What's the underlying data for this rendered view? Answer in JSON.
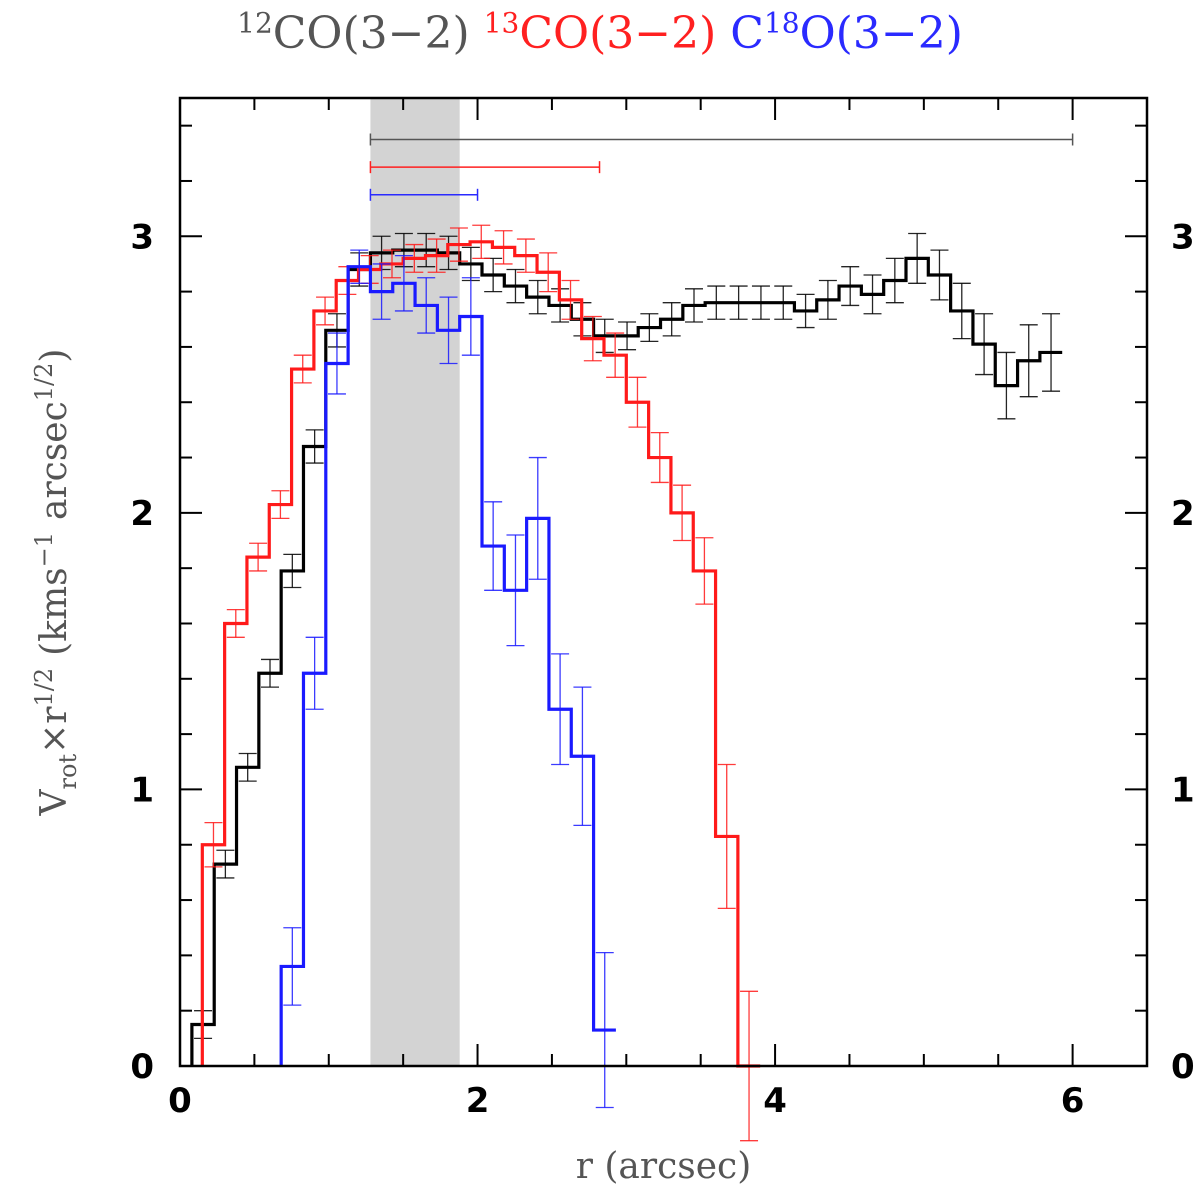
{
  "chart_data": {
    "type": "line",
    "title_parts": [
      {
        "iso": "12",
        "pre": "",
        "post": "CO(3−2)",
        "color": "#555555"
      },
      {
        "iso": "13",
        "pre": "",
        "post": "CO(3−2)",
        "color": "#ff2020"
      },
      {
        "iso": "18",
        "pre": "C",
        "post": "O(3−2)",
        "color": "#2a2aff"
      }
    ],
    "xlabel": "r (arcsec)",
    "ylabel_main": "V",
    "ylabel_sub": "rot",
    "ylabel_rest": "×r",
    "ylabel_exp": "1/2",
    "ylabel_units": "(kms",
    "ylabel_units_exp": "−1",
    "ylabel_units_rest": "arcsec",
    "ylabel_units_exp2": "1/2",
    "ylabel_close": ")",
    "xlim": [
      0,
      6.5
    ],
    "ylim": [
      0,
      3.5
    ],
    "x_ticks": [
      0,
      2,
      4,
      6
    ],
    "y_ticks": [
      0,
      1,
      2,
      3
    ],
    "shaded_region": [
      1.28,
      1.88
    ],
    "range_bars": [
      {
        "color": "#555555",
        "x0": 1.28,
        "x1": 6.0,
        "y": 3.35
      },
      {
        "color": "#ff2020",
        "x0": 1.28,
        "x1": 2.82,
        "y": 3.25
      },
      {
        "color": "#2a2aff",
        "x0": 1.28,
        "x1": 2.0,
        "y": 3.15
      }
    ],
    "series": [
      {
        "name": "12CO(3-2)",
        "color": "#000000",
        "bin_width": 0.15,
        "x": [
          0.08,
          0.23,
          0.38,
          0.53,
          0.68,
          0.83,
          0.98,
          1.13,
          1.28,
          1.43,
          1.58,
          1.73,
          1.88,
          2.03,
          2.18,
          2.33,
          2.48,
          2.63,
          2.78,
          2.93,
          3.08,
          3.23,
          3.38,
          3.53,
          3.68,
          3.83,
          3.98,
          4.13,
          4.28,
          4.43,
          4.58,
          4.73,
          4.88,
          5.03,
          5.18,
          5.33,
          5.48,
          5.63,
          5.78
        ],
        "y": [
          0.15,
          0.73,
          1.08,
          1.42,
          1.79,
          2.24,
          2.66,
          2.88,
          2.94,
          2.95,
          2.95,
          2.94,
          2.9,
          2.86,
          2.82,
          2.78,
          2.75,
          2.7,
          2.64,
          2.64,
          2.67,
          2.7,
          2.75,
          2.76,
          2.76,
          2.76,
          2.76,
          2.73,
          2.77,
          2.82,
          2.79,
          2.84,
          2.92,
          2.86,
          2.73,
          2.61,
          2.46,
          2.55,
          2.58
        ],
        "err": [
          0.05,
          0.05,
          0.05,
          0.05,
          0.06,
          0.06,
          0.06,
          0.06,
          0.06,
          0.06,
          0.06,
          0.06,
          0.06,
          0.06,
          0.06,
          0.06,
          0.06,
          0.06,
          0.06,
          0.05,
          0.05,
          0.06,
          0.06,
          0.06,
          0.06,
          0.06,
          0.06,
          0.06,
          0.07,
          0.07,
          0.07,
          0.08,
          0.09,
          0.09,
          0.1,
          0.11,
          0.12,
          0.13,
          0.14
        ]
      },
      {
        "name": "13CO(3-2)",
        "color": "#ff1a1a",
        "bin_width": 0.15,
        "x": [
          0.15,
          0.3,
          0.45,
          0.6,
          0.75,
          0.9,
          1.05,
          1.2,
          1.35,
          1.5,
          1.65,
          1.8,
          1.95,
          2.1,
          2.25,
          2.4,
          2.55,
          2.7,
          2.85,
          3.0,
          3.15,
          3.3,
          3.45,
          3.6,
          3.75
        ],
        "y": [
          0.8,
          1.6,
          1.84,
          2.03,
          2.52,
          2.73,
          2.84,
          2.88,
          2.9,
          2.92,
          2.93,
          2.97,
          2.98,
          2.96,
          2.93,
          2.87,
          2.77,
          2.63,
          2.57,
          2.4,
          2.2,
          2.0,
          1.79,
          0.83,
          0.0
        ],
        "err": [
          0.08,
          0.05,
          0.05,
          0.05,
          0.05,
          0.05,
          0.05,
          0.05,
          0.05,
          0.05,
          0.06,
          0.06,
          0.06,
          0.06,
          0.06,
          0.07,
          0.07,
          0.08,
          0.08,
          0.09,
          0.09,
          0.1,
          0.12,
          0.26,
          0.27
        ]
      },
      {
        "name": "C18O(3-2)",
        "color": "#1a1aff",
        "bin_width": 0.15,
        "x": [
          0.68,
          0.83,
          0.98,
          1.13,
          1.28,
          1.43,
          1.58,
          1.73,
          1.88,
          2.03,
          2.18,
          2.33,
          2.48,
          2.63,
          2.78
        ],
        "y": [
          0.36,
          1.42,
          2.54,
          2.89,
          2.8,
          2.83,
          2.75,
          2.66,
          2.71,
          1.88,
          1.72,
          1.98,
          1.29,
          1.12,
          0.13
        ],
        "err": [
          0.14,
          0.13,
          0.11,
          0.06,
          0.1,
          0.1,
          0.1,
          0.12,
          0.14,
          0.16,
          0.2,
          0.22,
          0.2,
          0.25,
          0.28
        ]
      }
    ]
  }
}
